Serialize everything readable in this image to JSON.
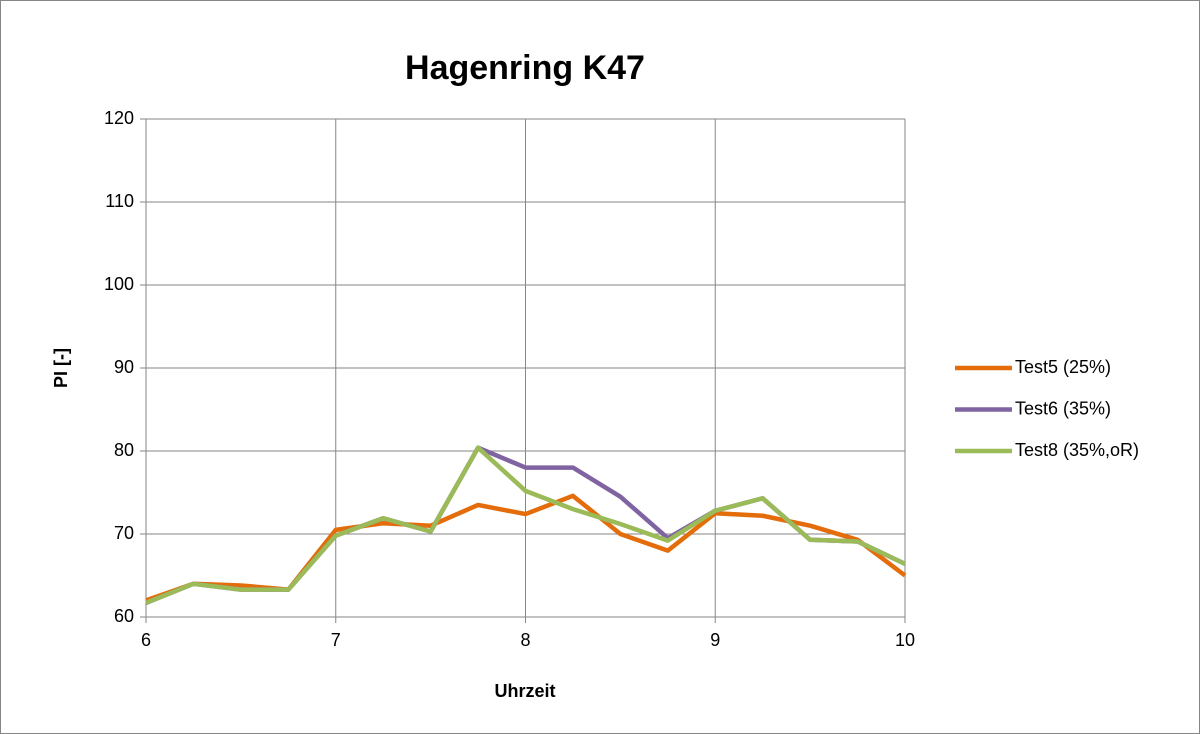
{
  "chart_data": {
    "type": "line",
    "title": "Hagenring K47",
    "x_label": "Uhrzeit",
    "y_label": "PI [-]",
    "x": [
      6,
      6.25,
      6.5,
      6.75,
      7,
      7.25,
      7.5,
      7.75,
      8,
      8.25,
      8.5,
      8.75,
      9,
      9.25,
      9.5,
      9.75,
      10
    ],
    "series": [
      {
        "name": "Test5 (25%)",
        "color": "#e46c0a",
        "values": [
          62,
          64,
          63.8,
          63.3,
          70.5,
          71.3,
          71,
          73.5,
          72.4,
          74.6,
          70,
          68,
          72.5,
          72.2,
          71,
          69.3,
          65
        ]
      },
      {
        "name": "Test6 (35%)",
        "color": "#8064a2",
        "values": [
          61.7,
          64,
          63.3,
          63.3,
          69.8,
          71.9,
          70.3,
          80.4,
          78,
          78,
          74.5,
          69.5,
          72.8,
          74.3,
          69.3,
          69.1,
          66.4
        ]
      },
      {
        "name": "Test8 (35%,oR)",
        "color": "#9bbb59",
        "values": [
          61.7,
          64,
          63.3,
          63.3,
          69.8,
          71.9,
          70.3,
          80.4,
          75.2,
          73,
          71.2,
          69.2,
          72.8,
          74.3,
          69.3,
          69.1,
          66.4
        ]
      }
    ],
    "xlim": [
      6,
      10
    ],
    "xticks": [
      6,
      7,
      8,
      9,
      10
    ],
    "ylim": [
      60,
      120
    ],
    "yticks": [
      60,
      70,
      80,
      90,
      100,
      110,
      120
    ],
    "grid": true,
    "legend": "right"
  }
}
